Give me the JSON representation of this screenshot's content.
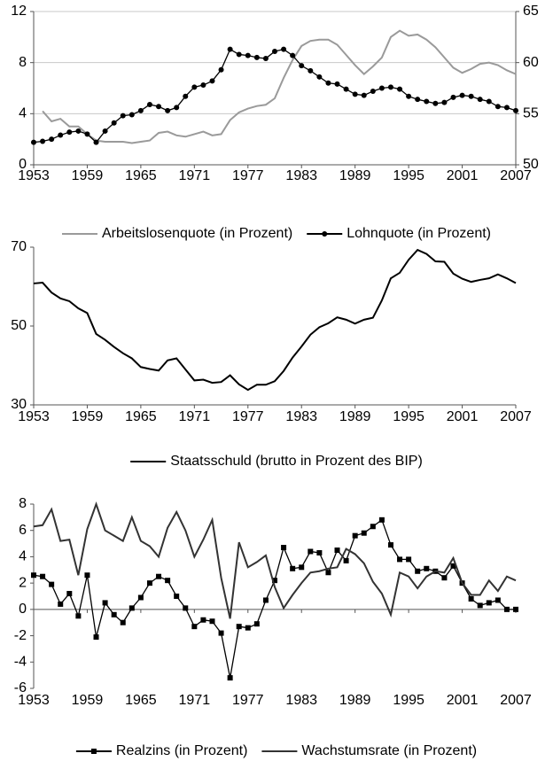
{
  "chart_data": [
    {
      "type": "line",
      "x": [
        1953,
        1954,
        1955,
        1956,
        1957,
        1958,
        1959,
        1960,
        1961,
        1962,
        1963,
        1964,
        1965,
        1966,
        1967,
        1968,
        1969,
        1970,
        1971,
        1972,
        1973,
        1974,
        1975,
        1976,
        1977,
        1978,
        1979,
        1980,
        1981,
        1982,
        1983,
        1984,
        1985,
        1986,
        1987,
        1988,
        1989,
        1990,
        1991,
        1992,
        1993,
        1994,
        1995,
        1996,
        1997,
        1998,
        1999,
        2000,
        2001,
        2002,
        2003,
        2004,
        2005,
        2006,
        2007
      ],
      "xlim": [
        1953,
        2007
      ],
      "xticks": [
        1953,
        1959,
        1965,
        1971,
        1977,
        1983,
        1989,
        1995,
        2001,
        2007
      ],
      "ylim": [
        0,
        12
      ],
      "yticks": [
        0,
        4,
        8,
        12
      ],
      "y2lim": [
        50,
        65
      ],
      "y2ticks": [
        50,
        55,
        60,
        65
      ],
      "grid": true,
      "legend": "bottom",
      "series": [
        {
          "name": "Arbeitslosenquote (in Prozent)",
          "color": "#9a9a9a",
          "marker": "none",
          "values": [
            null,
            4.2,
            3.4,
            3.6,
            3.0,
            3.0,
            2.4,
            1.9,
            1.8,
            1.8,
            1.8,
            1.7,
            1.8,
            1.9,
            2.5,
            2.6,
            2.3,
            2.2,
            2.4,
            2.6,
            2.3,
            2.4,
            3.5,
            4.1,
            4.4,
            4.6,
            4.7,
            5.2,
            6.8,
            8.2,
            9.3,
            9.7,
            9.8,
            9.8,
            9.4,
            8.6,
            7.8,
            7.1,
            7.7,
            8.4,
            10.0,
            10.5,
            10.1,
            10.2,
            9.8,
            9.2,
            8.4,
            7.6,
            7.2,
            7.5,
            7.9,
            8.0,
            7.8,
            7.4,
            7.1
          ]
        },
        {
          "name": "Lohnquote (in Prozent)",
          "color": "#000000",
          "marker": "circle",
          "axis": "y2",
          "values": [
            52.2,
            52.3,
            52.5,
            52.9,
            53.2,
            53.3,
            53.0,
            52.2,
            53.3,
            54.1,
            54.8,
            54.9,
            55.3,
            55.9,
            55.7,
            55.3,
            55.6,
            56.7,
            57.6,
            57.8,
            58.2,
            59.3,
            61.3,
            60.8,
            60.7,
            60.5,
            60.4,
            61.1,
            61.3,
            60.7,
            59.7,
            59.2,
            58.6,
            58.0,
            57.9,
            57.4,
            56.9,
            56.8,
            57.2,
            57.5,
            57.6,
            57.4,
            56.7,
            56.4,
            56.2,
            56.0,
            56.1,
            56.6,
            56.8,
            56.7,
            56.4,
            56.2,
            55.7,
            55.6,
            55.3
          ]
        }
      ]
    },
    {
      "type": "line",
      "x": [
        1953,
        1954,
        1955,
        1956,
        1957,
        1958,
        1959,
        1960,
        1961,
        1962,
        1963,
        1964,
        1965,
        1966,
        1967,
        1968,
        1969,
        1970,
        1971,
        1972,
        1973,
        1974,
        1975,
        1976,
        1977,
        1978,
        1979,
        1980,
        1981,
        1982,
        1983,
        1984,
        1985,
        1986,
        1987,
        1988,
        1989,
        1990,
        1991,
        1992,
        1993,
        1994,
        1995,
        1996,
        1997,
        1998,
        1999,
        2000,
        2001,
        2002,
        2003,
        2004,
        2005,
        2006,
        2007
      ],
      "xlim": [
        1953,
        2007
      ],
      "xticks": [
        1953,
        1959,
        1965,
        1971,
        1977,
        1983,
        1989,
        1995,
        2001,
        2007
      ],
      "ylim": [
        30,
        70
      ],
      "yticks": [
        30,
        50,
        70
      ],
      "grid": false,
      "legend": "bottom",
      "series": [
        {
          "name": "Staatsschuld (brutto in Prozent des BIP)",
          "color": "#000000",
          "marker": "none",
          "values": [
            60.8,
            61.0,
            58.5,
            57.0,
            56.3,
            54.5,
            53.3,
            48.0,
            46.5,
            44.7,
            43.1,
            41.8,
            39.6,
            39.1,
            38.7,
            41.3,
            41.8,
            39.0,
            36.2,
            36.4,
            35.6,
            35.8,
            37.5,
            35.2,
            33.8,
            35.1,
            35.1,
            36.0,
            38.6,
            42.0,
            44.8,
            47.8,
            49.7,
            50.7,
            52.2,
            51.6,
            50.6,
            51.6,
            52.1,
            56.5,
            62.1,
            63.5,
            66.8,
            69.3,
            68.3,
            66.4,
            66.3,
            63.3,
            62.0,
            61.2,
            61.7,
            62.1,
            63.1,
            62.1,
            60.9
          ]
        }
      ]
    },
    {
      "type": "line",
      "x": [
        1953,
        1954,
        1955,
        1956,
        1957,
        1958,
        1959,
        1960,
        1961,
        1962,
        1963,
        1964,
        1965,
        1966,
        1967,
        1968,
        1969,
        1970,
        1971,
        1972,
        1973,
        1974,
        1975,
        1976,
        1977,
        1978,
        1979,
        1980,
        1981,
        1982,
        1983,
        1984,
        1985,
        1986,
        1987,
        1988,
        1989,
        1990,
        1991,
        1992,
        1993,
        1994,
        1995,
        1996,
        1997,
        1998,
        1999,
        2000,
        2001,
        2002,
        2003,
        2004,
        2005,
        2006,
        2007
      ],
      "xlim": [
        1953,
        2007
      ],
      "xticks": [
        1953,
        1959,
        1965,
        1971,
        1977,
        1983,
        1989,
        1995,
        2001,
        2007
      ],
      "ylim": [
        -6,
        8
      ],
      "yticks": [
        -6,
        -4,
        -2,
        0,
        2,
        4,
        6,
        8
      ],
      "grid": false,
      "legend": "bottom",
      "series": [
        {
          "name": "Realzins (in Prozent)",
          "color": "#000000",
          "marker": "square",
          "values": [
            2.6,
            2.5,
            1.9,
            0.4,
            1.2,
            -0.5,
            2.6,
            -2.1,
            0.5,
            -0.4,
            -1.0,
            0.1,
            0.9,
            2.0,
            2.5,
            2.2,
            1.0,
            0.1,
            -1.3,
            -0.8,
            -0.9,
            -1.8,
            -5.2,
            -1.3,
            -1.4,
            -1.1,
            0.7,
            2.2,
            4.7,
            3.1,
            3.2,
            4.4,
            4.3,
            2.8,
            4.5,
            3.7,
            5.6,
            5.8,
            6.3,
            6.8,
            4.9,
            3.8,
            3.8,
            2.9,
            3.1,
            2.9,
            2.4,
            3.3,
            2.0,
            0.8,
            0.3,
            0.5,
            0.7,
            0.0,
            0.0
          ]
        },
        {
          "name": "Wachstumsrate (in Prozent)",
          "color": "#333333",
          "marker": "none",
          "values": [
            6.3,
            6.4,
            7.6,
            5.2,
            5.3,
            2.6,
            6.1,
            8.0,
            6.0,
            5.6,
            5.2,
            7.0,
            5.2,
            4.8,
            4.0,
            6.2,
            7.4,
            6.0,
            4.0,
            5.3,
            6.8,
            2.4,
            -0.7,
            5.1,
            3.2,
            3.6,
            4.1,
            1.7,
            0.1,
            1.1,
            2.0,
            2.8,
            2.9,
            3.1,
            3.2,
            4.6,
            4.2,
            3.5,
            2.1,
            1.2,
            -0.4,
            2.8,
            2.5,
            1.6,
            2.5,
            2.9,
            2.8,
            3.9,
            2.0,
            1.1,
            1.1,
            2.2,
            1.4,
            2.5,
            2.2
          ]
        }
      ]
    }
  ]
}
